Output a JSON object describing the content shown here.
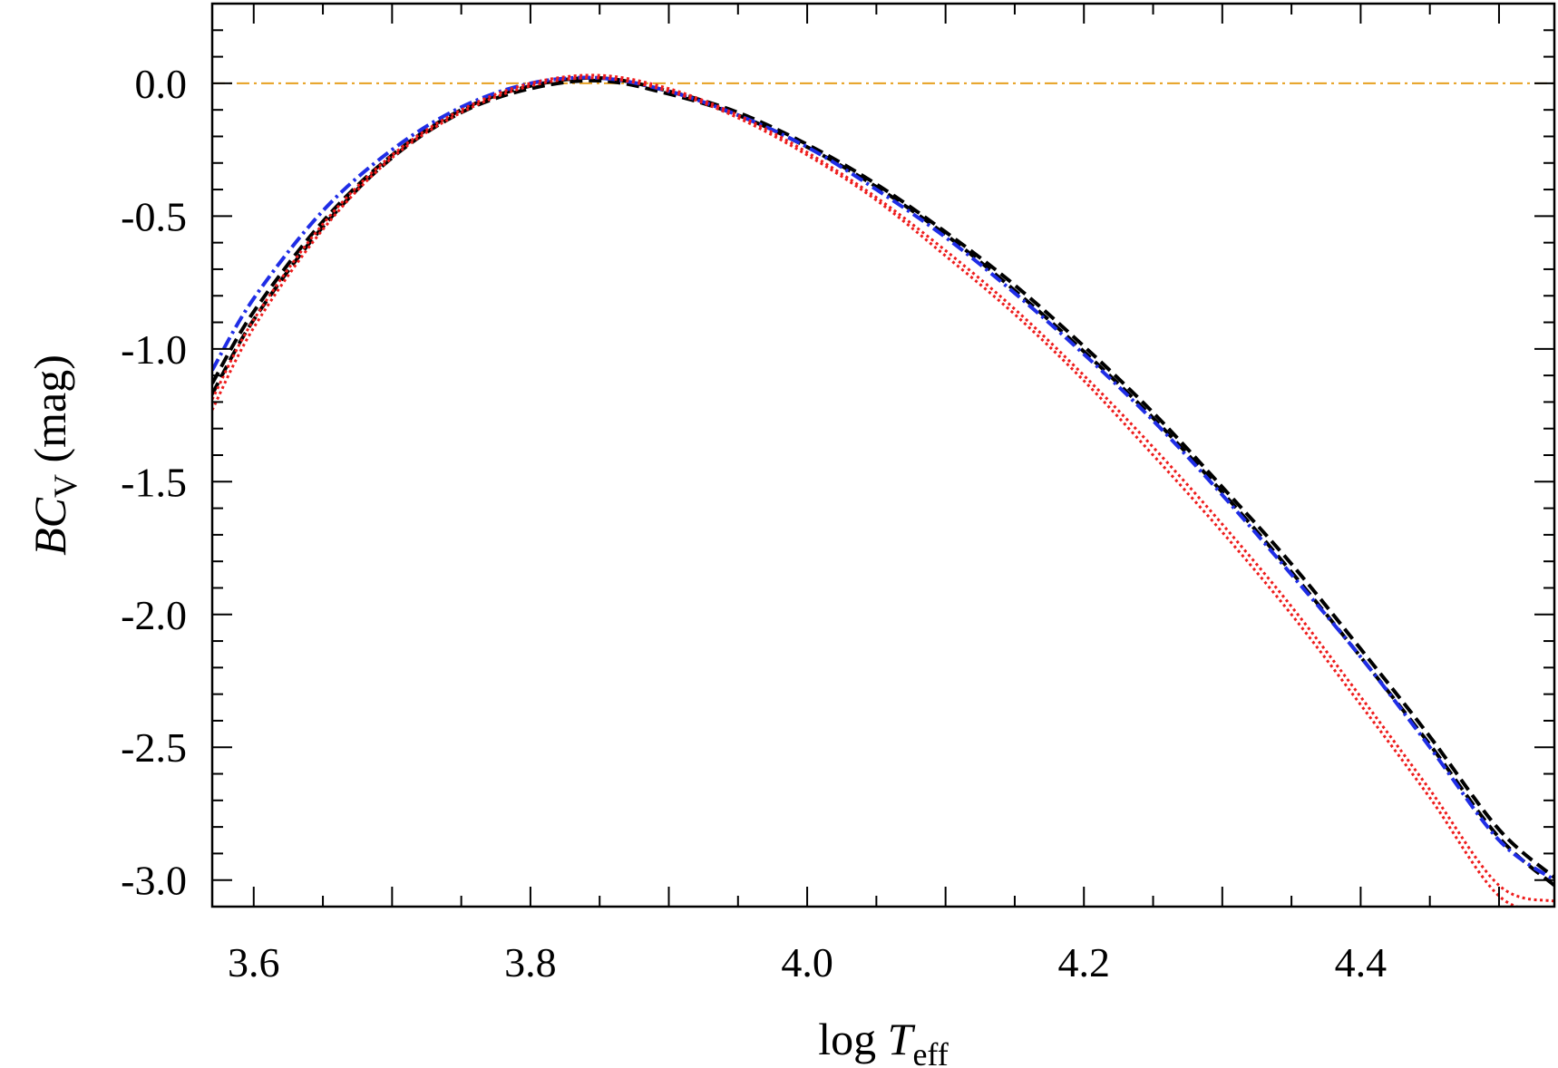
{
  "chart_data": {
    "type": "line",
    "xlabel": {
      "prefix": "log ",
      "symbol": "T",
      "subscript": "eff"
    },
    "ylabel": {
      "symbol": "BC",
      "subscript": "V",
      "suffix": " (mag)"
    },
    "xlim": [
      3.57,
      4.54
    ],
    "ylim": [
      -3.1,
      0.3
    ],
    "x_ticks": [
      "3.6",
      "3.8",
      "4.0",
      "4.2",
      "4.4"
    ],
    "y_ticks": [
      "0.0",
      "-0.5",
      "-1.0",
      "-1.5",
      "-2.0",
      "-2.5",
      "-3.0"
    ],
    "grid": false,
    "reference_line": {
      "y": 0.0,
      "color": "#e6a020",
      "style": "dash-dot"
    },
    "series": [
      {
        "color": "#000000",
        "style": "dashed",
        "x": [
          3.57,
          3.6,
          3.65,
          3.7,
          3.75,
          3.8,
          3.85,
          3.9,
          3.95,
          4.0,
          4.05,
          4.1,
          4.15,
          4.2,
          4.25,
          4.3,
          4.35,
          4.4,
          4.45,
          4.5,
          4.54
        ],
        "y": [
          -1.13,
          -0.86,
          -0.52,
          -0.27,
          -0.1,
          -0.01,
          0.02,
          -0.03,
          -0.11,
          -0.23,
          -0.38,
          -0.56,
          -0.76,
          -0.99,
          -1.24,
          -1.52,
          -1.81,
          -2.13,
          -2.46,
          -2.81,
          -2.99
        ]
      },
      {
        "color": "#000000",
        "style": "dashed",
        "x": [
          3.57,
          3.6,
          3.65,
          3.7,
          3.75,
          3.8,
          3.85,
          3.9,
          3.95,
          4.0,
          4.05,
          4.1,
          4.15,
          4.2,
          4.25,
          4.3,
          4.35,
          4.4,
          4.45,
          4.5,
          4.54
        ],
        "y": [
          -1.17,
          -0.89,
          -0.54,
          -0.28,
          -0.11,
          -0.02,
          0.01,
          -0.04,
          -0.12,
          -0.24,
          -0.39,
          -0.57,
          -0.78,
          -1.01,
          -1.26,
          -1.54,
          -1.84,
          -2.16,
          -2.49,
          -2.84,
          -3.02
        ]
      },
      {
        "color": "#1f2de6",
        "style": "dash-dot",
        "x": [
          3.57,
          3.6,
          3.65,
          3.7,
          3.75,
          3.8,
          3.85,
          3.9,
          3.95,
          4.0,
          4.05,
          4.1,
          4.15,
          4.2,
          4.25,
          4.3,
          4.35,
          4.4,
          4.45,
          4.5,
          4.54
        ],
        "y": [
          -1.08,
          -0.81,
          -0.48,
          -0.25,
          -0.09,
          0.0,
          0.02,
          -0.03,
          -0.12,
          -0.24,
          -0.4,
          -0.58,
          -0.79,
          -1.02,
          -1.27,
          -1.55,
          -1.85,
          -2.16,
          -2.5,
          -2.85,
          -3.0
        ]
      },
      {
        "color": "#ee1c1c",
        "style": "dotted",
        "x": [
          3.57,
          3.6,
          3.65,
          3.7,
          3.75,
          3.8,
          3.85,
          3.9,
          3.95,
          4.0,
          4.05,
          4.1,
          4.15,
          4.2,
          4.25,
          4.3,
          4.35,
          4.4,
          4.45,
          4.5,
          4.54
        ],
        "y": [
          -1.19,
          -0.89,
          -0.53,
          -0.27,
          -0.1,
          0.0,
          0.03,
          -0.02,
          -0.12,
          -0.26,
          -0.43,
          -0.63,
          -0.85,
          -1.1,
          -1.37,
          -1.66,
          -1.97,
          -2.31,
          -2.66,
          -3.02,
          -3.08
        ]
      },
      {
        "color": "#ee1c1c",
        "style": "dotted",
        "x": [
          3.57,
          3.6,
          3.65,
          3.7,
          3.75,
          3.8,
          3.85,
          3.9,
          3.95,
          4.0,
          4.05,
          4.1,
          4.15,
          4.2,
          4.25,
          4.3,
          4.35,
          4.4,
          4.45,
          4.5,
          4.54
        ],
        "y": [
          -1.23,
          -0.92,
          -0.55,
          -0.28,
          -0.11,
          -0.01,
          0.02,
          -0.03,
          -0.13,
          -0.27,
          -0.44,
          -0.65,
          -0.87,
          -1.12,
          -1.4,
          -1.69,
          -2.0,
          -2.34,
          -2.69,
          -3.06,
          -3.12
        ]
      }
    ]
  }
}
